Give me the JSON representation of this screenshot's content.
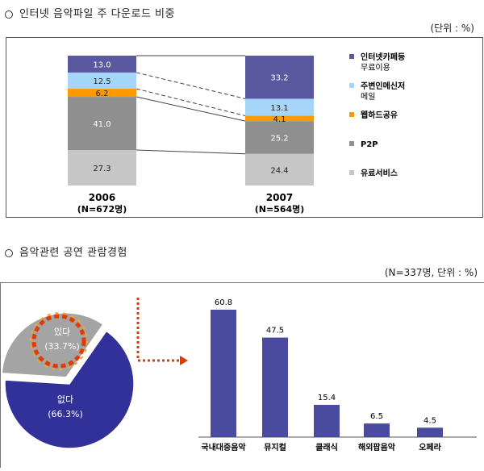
{
  "section1": {
    "title": "인터넷 음악파일 주 다운로드 비중",
    "unit": "(단위 : %)"
  },
  "section2": {
    "title": "음악관련 공연 관람경험",
    "unit": "(N=337명, 단위 : %)"
  },
  "chart_data": [
    {
      "type": "bar",
      "stacked": true,
      "categories": [
        "2006",
        "2007"
      ],
      "category_sublabels": [
        "(N=672명)",
        "(N=564명)"
      ],
      "series": [
        {
          "name": "유료서비스",
          "values": [
            27.3,
            24.4
          ],
          "color": "#c6c6c6"
        },
        {
          "name": "P2P",
          "values": [
            41.0,
            25.2
          ],
          "color": "#8f8f8f"
        },
        {
          "name": "웹하드공유",
          "values": [
            6.2,
            4.1
          ],
          "color": "#ff9900"
        },
        {
          "name": "주변인메신저 메일",
          "values": [
            12.5,
            13.1
          ],
          "color": "#a6d5fa"
        },
        {
          "name": "인터넷카페등 무료이용",
          "values": [
            13.0,
            33.2
          ],
          "color": "#5a59a0"
        }
      ],
      "legend": "right"
    },
    {
      "type": "pie",
      "slices": [
        {
          "label": "있다",
          "value": 33.7,
          "display": "(33.7%)",
          "color": "#a4a4a4"
        },
        {
          "label": "없다",
          "value": 66.3,
          "display": "(66.3%)",
          "color": "#32319a"
        }
      ]
    },
    {
      "type": "bar",
      "categories": [
        "국내대중음악",
        "뮤지컬",
        "클래식",
        "해외팝음악",
        "오페라"
      ],
      "values": [
        60.8,
        47.5,
        15.4,
        6.5,
        4.5
      ],
      "value_labels": [
        "60.8",
        "47.5",
        "15.4",
        "6.5",
        "4.5"
      ],
      "color": "#4a4a9e",
      "ylim": [
        0,
        70
      ]
    }
  ]
}
